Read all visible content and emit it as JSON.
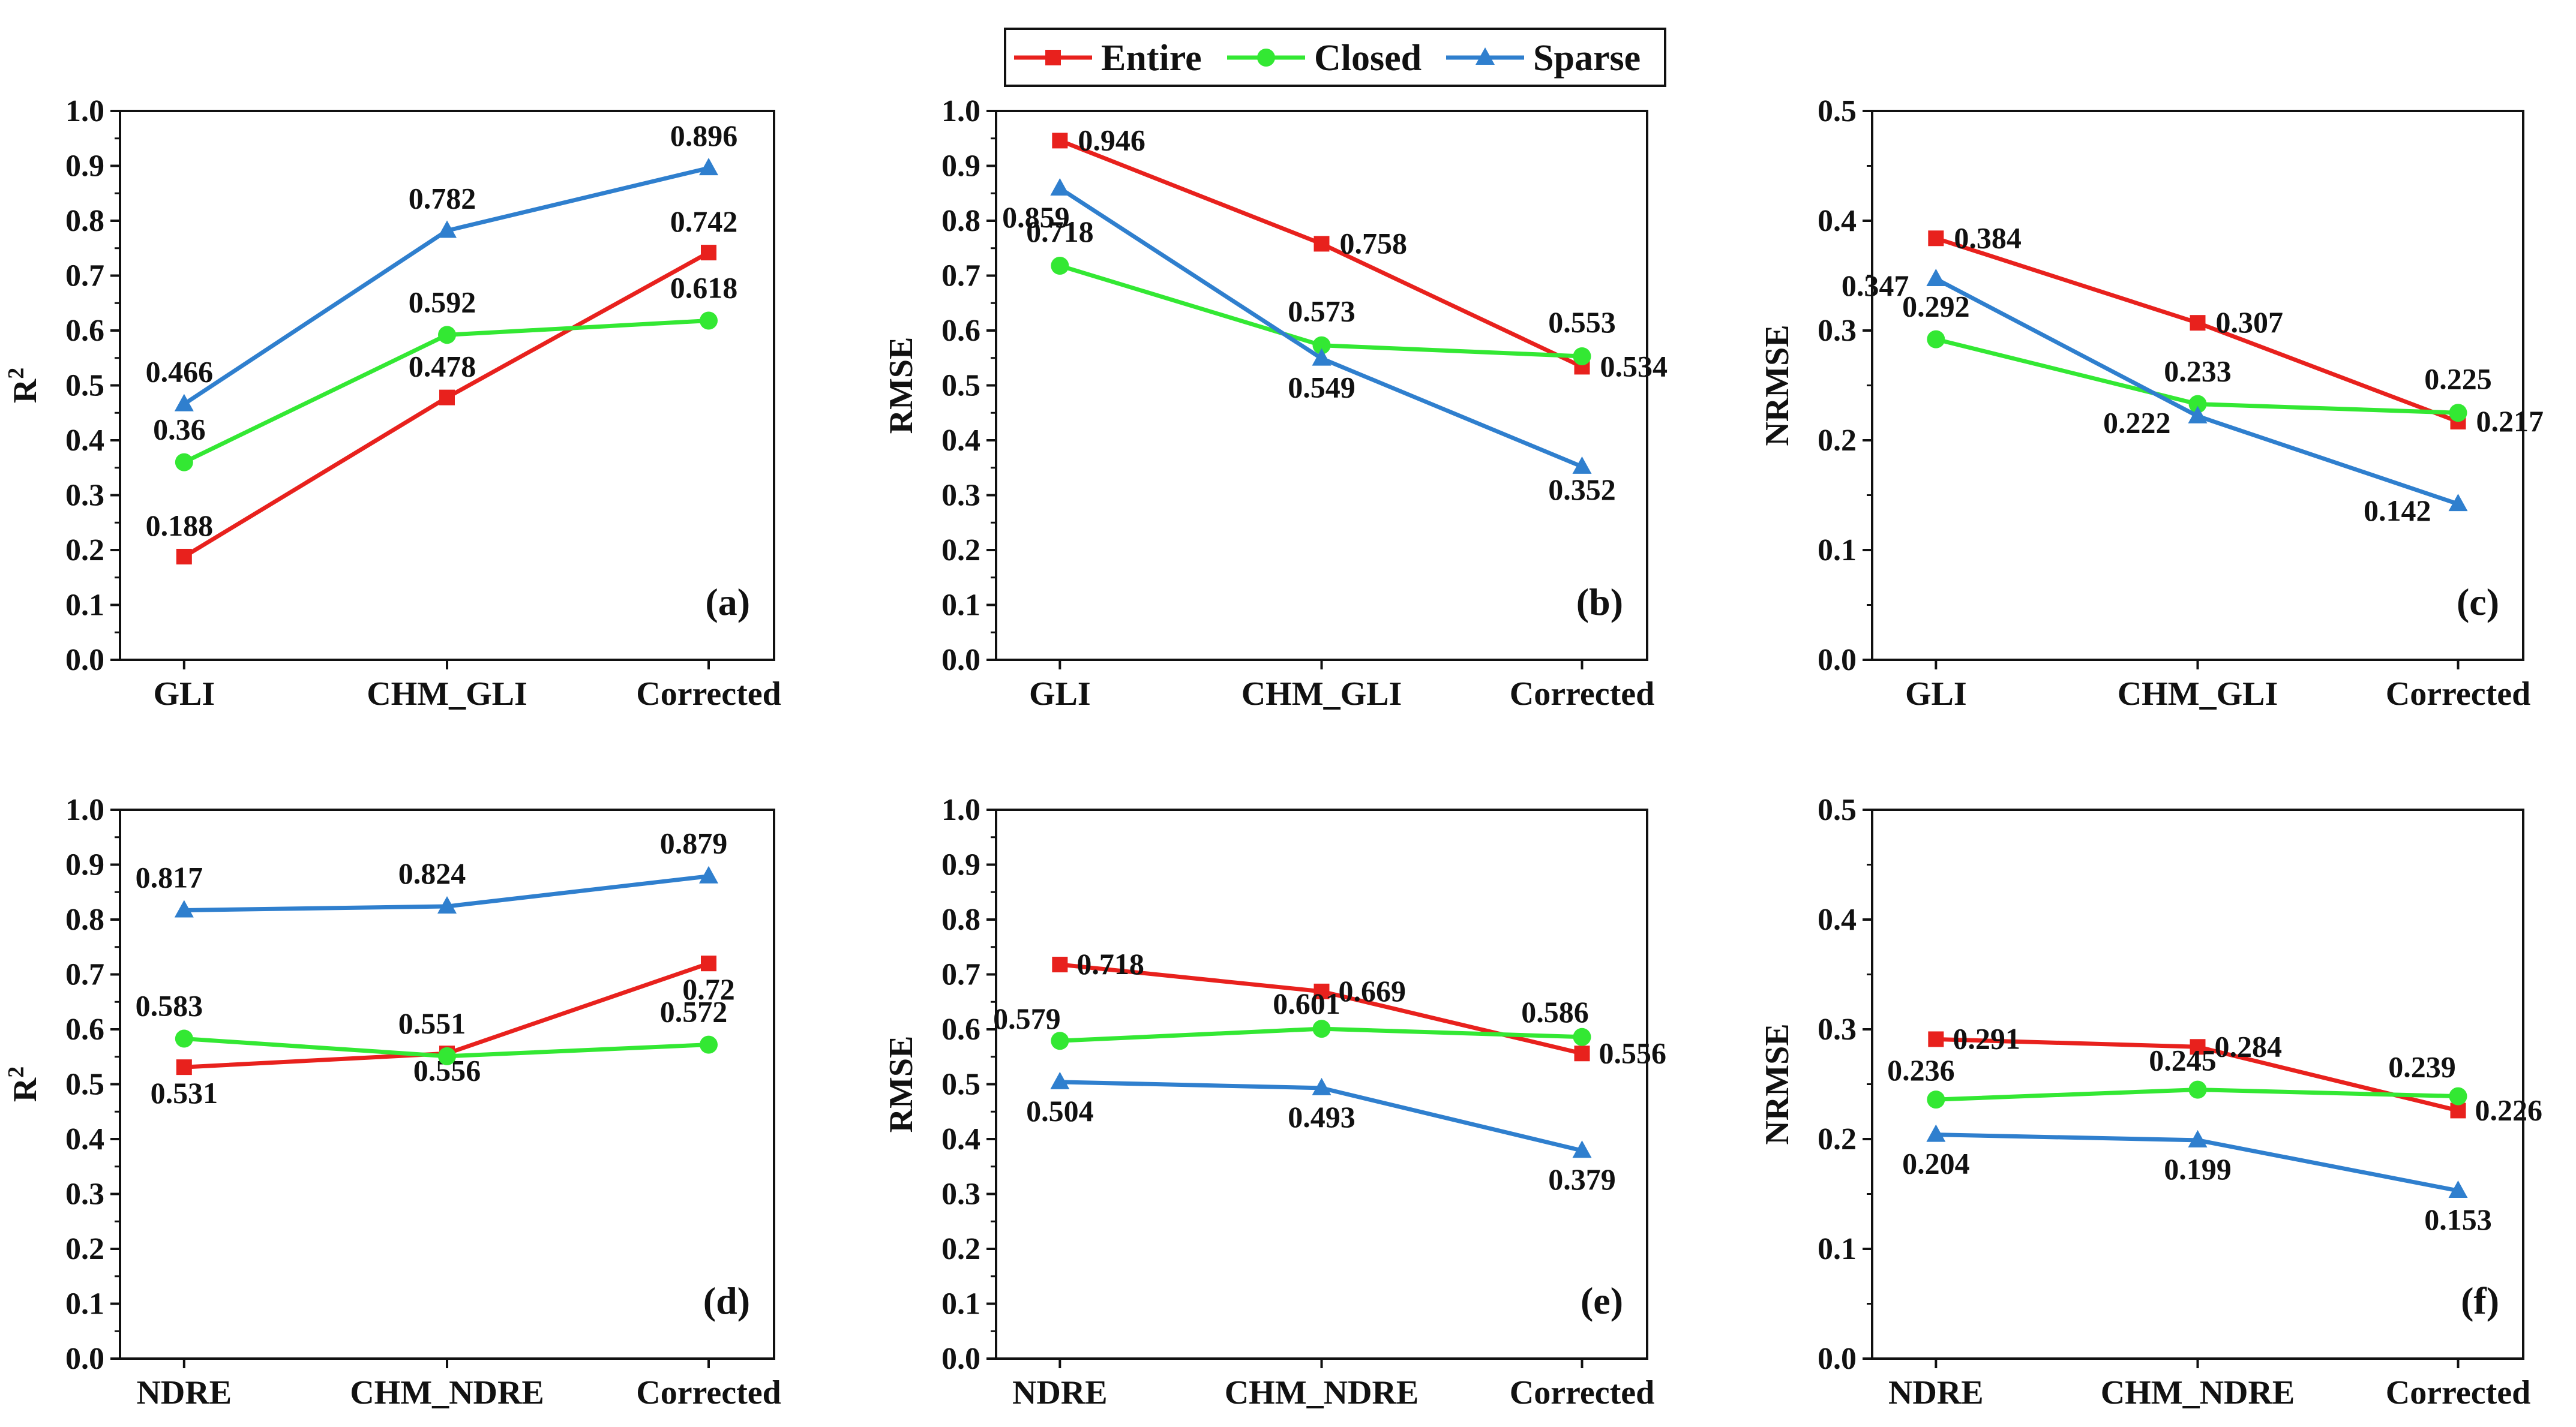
{
  "legend": {
    "items": [
      {
        "name": "Entire",
        "color": "#e8211d",
        "marker": "square"
      },
      {
        "name": "Closed",
        "color": "#33e833",
        "marker": "circle"
      },
      {
        "name": "Sparse",
        "color": "#2f7fce",
        "marker": "triangle"
      }
    ]
  },
  "chart_data": [
    {
      "type": "line",
      "panel": "(a)",
      "ylabel": "R",
      "ylabel_sup": "2",
      "ylim": [
        0,
        1.0
      ],
      "yticks": [
        "0.0",
        "0.1",
        "0.2",
        "0.3",
        "0.4",
        "0.5",
        "0.6",
        "0.7",
        "0.8",
        "0.9",
        "1.0"
      ],
      "categories": [
        "GLI",
        "CHM_GLI",
        "Corrected"
      ],
      "series": [
        {
          "name": "Entire",
          "values": [
            0.188,
            0.478,
            0.742
          ],
          "labels": [
            "0.188",
            "0.478",
            "0.742"
          ]
        },
        {
          "name": "Closed",
          "values": [
            0.36,
            0.592,
            0.618
          ],
          "labels": [
            "0.36",
            "0.592",
            "0.618"
          ]
        },
        {
          "name": "Sparse",
          "values": [
            0.466,
            0.782,
            0.896
          ],
          "labels": [
            "0.466",
            "0.782",
            "0.896"
          ]
        }
      ]
    },
    {
      "type": "line",
      "panel": "(b)",
      "ylabel": "RMSE",
      "ylabel_sup": "",
      "ylim": [
        0,
        1.0
      ],
      "yticks": [
        "0.0",
        "0.1",
        "0.2",
        "0.3",
        "0.4",
        "0.5",
        "0.6",
        "0.7",
        "0.8",
        "0.9",
        "1.0"
      ],
      "categories": [
        "GLI",
        "CHM_GLI",
        "Corrected"
      ],
      "series": [
        {
          "name": "Entire",
          "values": [
            0.946,
            0.758,
            0.534
          ],
          "labels": [
            "0.946",
            "0.758",
            "0.534"
          ]
        },
        {
          "name": "Closed",
          "values": [
            0.718,
            0.573,
            0.553
          ],
          "labels": [
            "0.718",
            "0.573",
            "0.553"
          ]
        },
        {
          "name": "Sparse",
          "values": [
            0.859,
            0.549,
            0.352
          ],
          "labels": [
            "0.859",
            "0.549",
            "0.352"
          ]
        }
      ]
    },
    {
      "type": "line",
      "panel": "(c)",
      "ylabel": "NRMSE",
      "ylabel_sup": "",
      "ylim": [
        0,
        0.5
      ],
      "yticks": [
        "0.0",
        "0.1",
        "0.2",
        "0.3",
        "0.4",
        "0.5"
      ],
      "categories": [
        "GLI",
        "CHM_GLI",
        "Corrected"
      ],
      "series": [
        {
          "name": "Entire",
          "values": [
            0.384,
            0.307,
            0.217
          ],
          "labels": [
            "0.384",
            "0.307",
            "0.217"
          ]
        },
        {
          "name": "Closed",
          "values": [
            0.292,
            0.233,
            0.225
          ],
          "labels": [
            "0.292",
            "0.233",
            "0.225"
          ]
        },
        {
          "name": "Sparse",
          "values": [
            0.347,
            0.222,
            0.142
          ],
          "labels": [
            "0.347",
            "0.222",
            "0.142"
          ]
        }
      ]
    },
    {
      "type": "line",
      "panel": "(d)",
      "ylabel": "R",
      "ylabel_sup": "2",
      "ylim": [
        0,
        1.0
      ],
      "yticks": [
        "0.0",
        "0.1",
        "0.2",
        "0.3",
        "0.4",
        "0.5",
        "0.6",
        "0.7",
        "0.8",
        "0.9",
        "1.0"
      ],
      "categories": [
        "NDRE",
        "CHM_NDRE",
        "Corrected"
      ],
      "series": [
        {
          "name": "Entire",
          "values": [
            0.531,
            0.556,
            0.72
          ],
          "labels": [
            "0.531",
            "0.556",
            "0.72"
          ]
        },
        {
          "name": "Closed",
          "values": [
            0.583,
            0.551,
            0.572
          ],
          "labels": [
            "0.583",
            "0.551",
            "0.572"
          ]
        },
        {
          "name": "Sparse",
          "values": [
            0.817,
            0.824,
            0.879
          ],
          "labels": [
            "0.817",
            "0.824",
            "0.879"
          ]
        }
      ]
    },
    {
      "type": "line",
      "panel": "(e)",
      "ylabel": "RMSE",
      "ylabel_sup": "",
      "ylim": [
        0,
        1.0
      ],
      "yticks": [
        "0.0",
        "0.1",
        "0.2",
        "0.3",
        "0.4",
        "0.5",
        "0.6",
        "0.7",
        "0.8",
        "0.9",
        "1.0"
      ],
      "categories": [
        "NDRE",
        "CHM_NDRE",
        "Corrected"
      ],
      "series": [
        {
          "name": "Entire",
          "values": [
            0.718,
            0.669,
            0.556
          ],
          "labels": [
            "0.718",
            "0.669",
            "0.556"
          ]
        },
        {
          "name": "Closed",
          "values": [
            0.579,
            0.601,
            0.586
          ],
          "labels": [
            "0.579",
            "0.601",
            "0.586"
          ]
        },
        {
          "name": "Sparse",
          "values": [
            0.504,
            0.493,
            0.379
          ],
          "labels": [
            "0.504",
            "0.493",
            "0.379"
          ]
        }
      ]
    },
    {
      "type": "line",
      "panel": "(f)",
      "ylabel": "NRMSE",
      "ylabel_sup": "",
      "ylim": [
        0,
        0.5
      ],
      "yticks": [
        "0.0",
        "0.1",
        "0.2",
        "0.3",
        "0.4",
        "0.5"
      ],
      "categories": [
        "NDRE",
        "CHM_NDRE",
        "Corrected"
      ],
      "series": [
        {
          "name": "Entire",
          "values": [
            0.291,
            0.284,
            0.226
          ],
          "labels": [
            "0.291",
            "0.284",
            "0.226"
          ]
        },
        {
          "name": "Closed",
          "values": [
            0.236,
            0.245,
            0.239
          ],
          "labels": [
            "0.236",
            "0.245",
            "0.239"
          ]
        },
        {
          "name": "Sparse",
          "values": [
            0.204,
            0.199,
            0.153
          ],
          "labels": [
            "0.204",
            "0.199",
            "0.153"
          ]
        }
      ]
    }
  ]
}
